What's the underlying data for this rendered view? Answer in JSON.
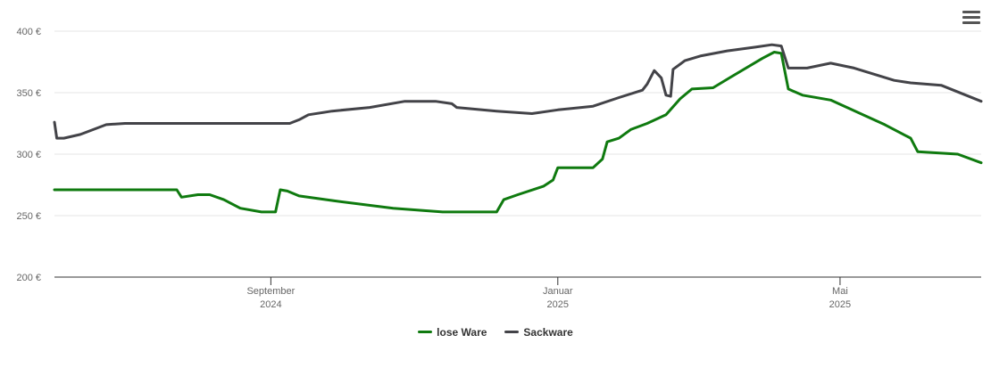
{
  "menu_icon": "hamburger-menu-icon",
  "chart_data": {
    "type": "line",
    "title": "",
    "xlabel": "",
    "ylabel": "",
    "ylim": [
      200,
      400
    ],
    "xlim": [
      "2024-06-01",
      "2025-06-30"
    ],
    "y_ticks": [
      {
        "value": 200,
        "label": "200 €"
      },
      {
        "value": 250,
        "label": "250 €"
      },
      {
        "value": 300,
        "label": "300 €"
      },
      {
        "value": 350,
        "label": "350 €"
      },
      {
        "value": 400,
        "label": "400 €"
      }
    ],
    "x_ticks": [
      {
        "date": "2024-09-01",
        "month": "September",
        "year": "2024"
      },
      {
        "date": "2025-01-01",
        "month": "Januar",
        "year": "2025"
      },
      {
        "date": "2025-05-01",
        "month": "Mai",
        "year": "2025"
      }
    ],
    "grid": true,
    "legend_position": "bottom-center",
    "series": [
      {
        "name": "lose Ware",
        "color": "#0f7a0f",
        "points": [
          [
            "2024-06-01",
            271
          ],
          [
            "2024-07-23",
            271
          ],
          [
            "2024-07-25",
            265
          ],
          [
            "2024-08-01",
            267
          ],
          [
            "2024-08-06",
            267
          ],
          [
            "2024-08-12",
            263
          ],
          [
            "2024-08-19",
            256
          ],
          [
            "2024-08-28",
            253
          ],
          [
            "2024-09-03",
            253
          ],
          [
            "2024-09-05",
            271
          ],
          [
            "2024-09-08",
            270
          ],
          [
            "2024-09-13",
            266
          ],
          [
            "2024-09-28",
            262
          ],
          [
            "2024-10-23",
            256
          ],
          [
            "2024-11-13",
            253
          ],
          [
            "2024-12-03",
            253
          ],
          [
            "2024-12-06",
            253
          ],
          [
            "2024-12-09",
            263
          ],
          [
            "2024-12-15",
            267
          ],
          [
            "2024-12-26",
            274
          ],
          [
            "2024-12-30",
            279
          ],
          [
            "2025-01-01",
            289
          ],
          [
            "2025-01-16",
            289
          ],
          [
            "2025-01-20",
            296
          ],
          [
            "2025-01-22",
            310
          ],
          [
            "2025-01-27",
            313
          ],
          [
            "2025-02-01",
            320
          ],
          [
            "2025-02-08",
            325
          ],
          [
            "2025-02-16",
            332
          ],
          [
            "2025-02-22",
            345
          ],
          [
            "2025-02-27",
            353
          ],
          [
            "2025-03-08",
            354
          ],
          [
            "2025-03-15",
            362
          ],
          [
            "2025-03-29",
            378
          ],
          [
            "2025-04-03",
            383
          ],
          [
            "2025-04-06",
            382
          ],
          [
            "2025-04-09",
            353
          ],
          [
            "2025-04-15",
            348
          ],
          [
            "2025-04-27",
            344
          ],
          [
            "2025-05-05",
            337
          ],
          [
            "2025-05-20",
            324
          ],
          [
            "2025-05-31",
            313
          ],
          [
            "2025-06-03",
            302
          ],
          [
            "2025-06-20",
            300
          ],
          [
            "2025-06-30",
            293
          ]
        ]
      },
      {
        "name": "Sackware",
        "color": "#434348",
        "points": [
          [
            "2024-06-01",
            326
          ],
          [
            "2024-06-02",
            313
          ],
          [
            "2024-06-05",
            313
          ],
          [
            "2024-06-12",
            316
          ],
          [
            "2024-06-23",
            324
          ],
          [
            "2024-07-01",
            325
          ],
          [
            "2024-09-09",
            325
          ],
          [
            "2024-09-13",
            328
          ],
          [
            "2024-09-17",
            332
          ],
          [
            "2024-09-27",
            335
          ],
          [
            "2024-10-13",
            338
          ],
          [
            "2024-10-28",
            343
          ],
          [
            "2024-11-10",
            343
          ],
          [
            "2024-11-17",
            341
          ],
          [
            "2024-11-19",
            338
          ],
          [
            "2024-12-06",
            335
          ],
          [
            "2024-12-21",
            333
          ],
          [
            "2025-01-01",
            336
          ],
          [
            "2025-01-16",
            339
          ],
          [
            "2025-01-27",
            346
          ],
          [
            "2025-02-06",
            352
          ],
          [
            "2025-02-08",
            357
          ],
          [
            "2025-02-11",
            368
          ],
          [
            "2025-02-14",
            362
          ],
          [
            "2025-02-16",
            348
          ],
          [
            "2025-02-18",
            347
          ],
          [
            "2025-02-19",
            369
          ],
          [
            "2025-02-24",
            376
          ],
          [
            "2025-03-03",
            380
          ],
          [
            "2025-03-14",
            384
          ],
          [
            "2025-03-26",
            387
          ],
          [
            "2025-04-02",
            389
          ],
          [
            "2025-04-06",
            388
          ],
          [
            "2025-04-09",
            370
          ],
          [
            "2025-04-17",
            370
          ],
          [
            "2025-04-27",
            374
          ],
          [
            "2025-05-07",
            370
          ],
          [
            "2025-05-24",
            360
          ],
          [
            "2025-05-31",
            358
          ],
          [
            "2025-06-13",
            356
          ],
          [
            "2025-06-30",
            343
          ]
        ]
      }
    ]
  }
}
